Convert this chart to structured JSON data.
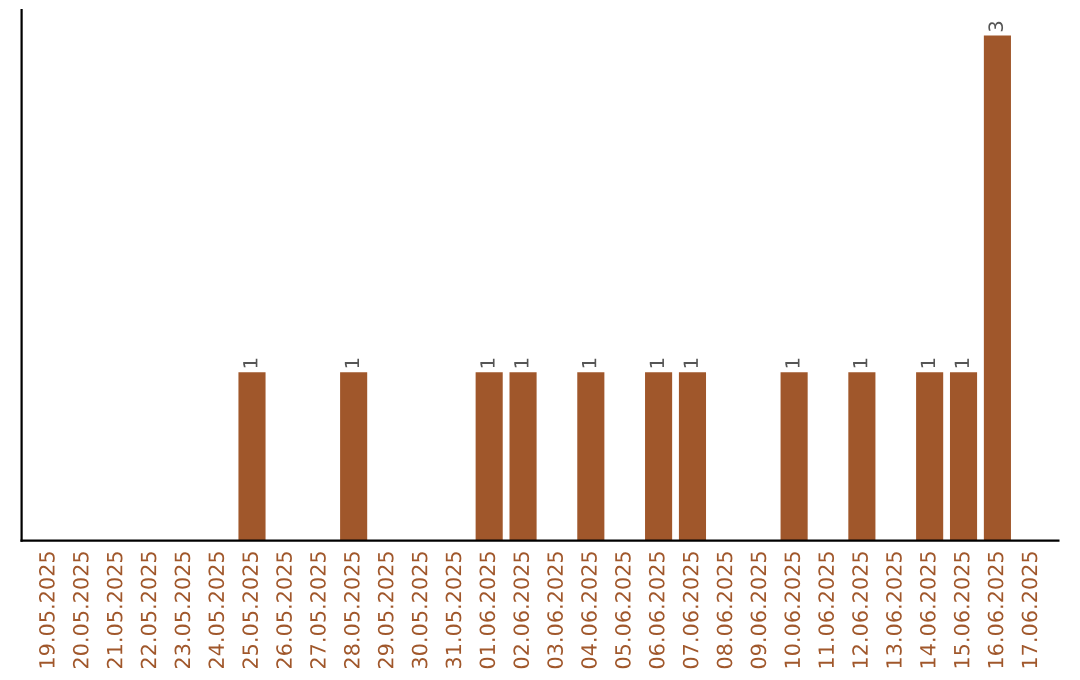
{
  "chart_data": {
    "type": "bar",
    "categories": [
      "19.05.2025",
      "20.05.2025",
      "21.05.2025",
      "22.05.2025",
      "23.05.2025",
      "24.05.2025",
      "25.05.2025",
      "26.05.2025",
      "27.05.2025",
      "28.05.2025",
      "29.05.2025",
      "30.05.2025",
      "31.05.2025",
      "01.06.2025",
      "02.06.2025",
      "03.06.2025",
      "04.06.2025",
      "05.06.2025",
      "06.06.2025",
      "07.06.2025",
      "08.06.2025",
      "09.06.2025",
      "10.06.2025",
      "11.06.2025",
      "12.06.2025",
      "13.06.2025",
      "14.06.2025",
      "15.06.2025",
      "16.06.2025",
      "17.06.2025"
    ],
    "values": [
      0,
      0,
      0,
      0,
      0,
      0,
      1,
      0,
      0,
      1,
      0,
      0,
      0,
      1,
      1,
      0,
      1,
      0,
      1,
      1,
      0,
      0,
      1,
      0,
      1,
      0,
      1,
      1,
      3,
      0
    ],
    "value_labels": [
      null,
      null,
      null,
      null,
      null,
      null,
      "1",
      null,
      null,
      "1",
      null,
      null,
      null,
      "1",
      "1",
      null,
      "1",
      null,
      "1",
      "1",
      null,
      null,
      "1",
      null,
      "1",
      null,
      "1",
      "1",
      "3",
      null
    ],
    "color": "#a0572b",
    "grid": false,
    "legend": false
  }
}
